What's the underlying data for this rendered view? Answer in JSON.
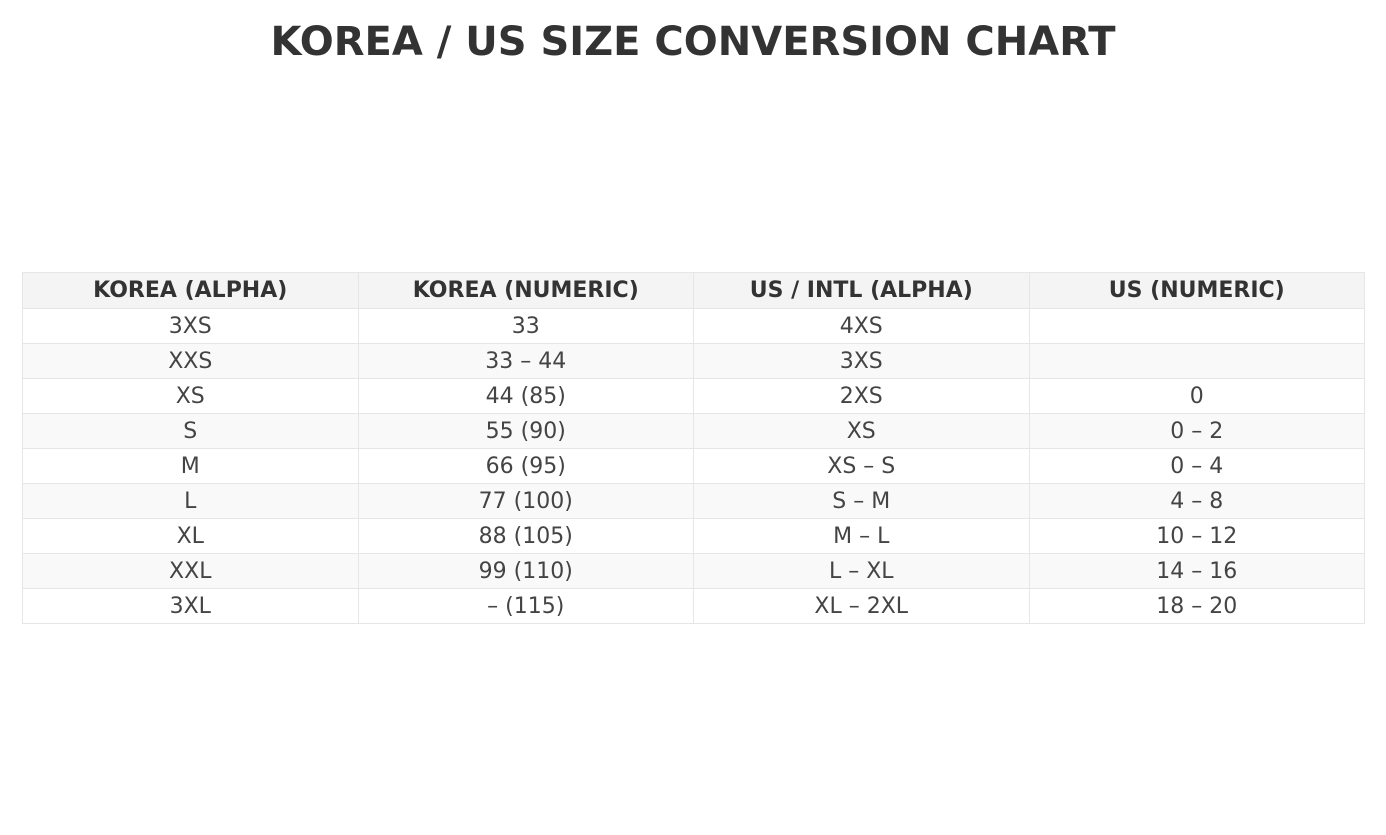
{
  "chart_data": {
    "type": "table",
    "title": "KOREA / US SIZE CONVERSION CHART",
    "columns": [
      "KOREA (ALPHA)",
      "KOREA (NUMERIC)",
      "US / INTL (ALPHA)",
      "US (NUMERIC)"
    ],
    "rows": [
      [
        "3XS",
        "33",
        "4XS",
        ""
      ],
      [
        "XXS",
        "33 – 44",
        "3XS",
        ""
      ],
      [
        "XS",
        "44 (85)",
        "2XS",
        "0"
      ],
      [
        "S",
        "55 (90)",
        "XS",
        "0 – 2"
      ],
      [
        "M",
        "66 (95)",
        "XS – S",
        "0 – 4"
      ],
      [
        "L",
        "77 (100)",
        "S – M",
        "4 – 8"
      ],
      [
        "XL",
        "88 (105)",
        "M – L",
        "10 – 12"
      ],
      [
        "XXL",
        "99 (110)",
        "L – XL",
        "14 – 16"
      ],
      [
        "3XL",
        "– (115)",
        "XL – 2XL",
        "18 – 20"
      ]
    ],
    "colors": {
      "header_bg": "#f4f4f4",
      "stripe_bg": "#f9f9f9",
      "border": "#e6e6e6",
      "text": "#444444"
    }
  }
}
